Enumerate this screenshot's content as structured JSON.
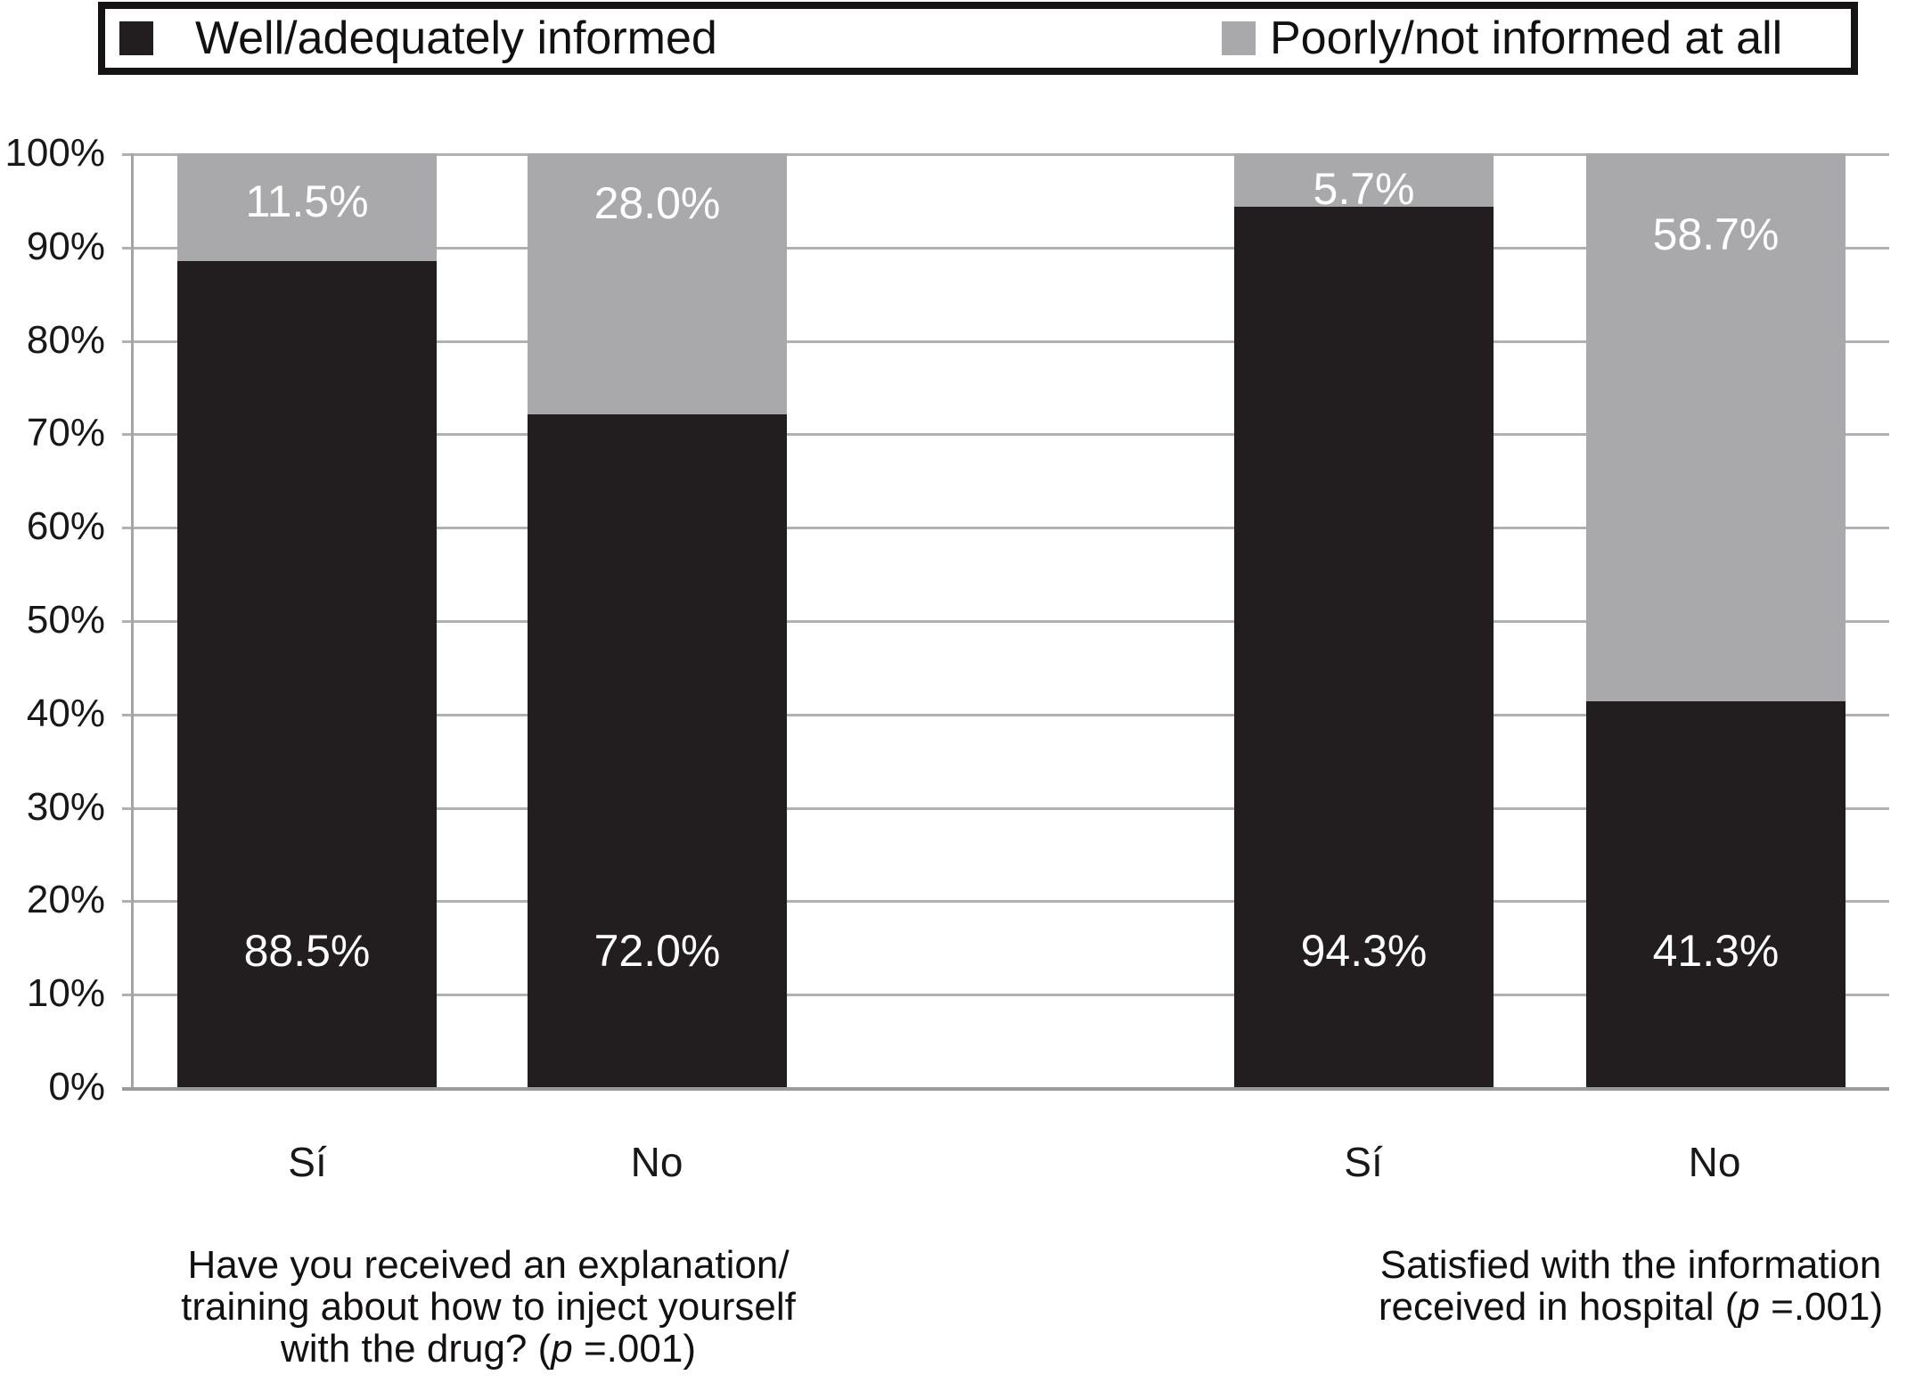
{
  "legend": {
    "items": [
      {
        "label": "Well/adequately informed",
        "color": "#221e1f"
      },
      {
        "label": "Poorly/not informed at all",
        "color": "#a9a9ab"
      }
    ]
  },
  "y_axis": {
    "ticks": [
      "100%",
      "90%",
      "80%",
      "70%",
      "60%",
      "50%",
      "40%",
      "30%",
      "20%",
      "10%",
      "0%"
    ]
  },
  "x_axis": {
    "categories": [
      "Sí",
      "No",
      "Sí",
      "No"
    ]
  },
  "labels": {
    "light": [
      "11.5%",
      "28.0%",
      "5.7%",
      "58.7%"
    ],
    "dark": [
      "88.5%",
      "72.0%",
      "94.3%",
      "41.3%"
    ]
  },
  "captions": {
    "left": {
      "line1": "Have you received an explanation/",
      "line2": "training about how to inject yourself",
      "line3_pre": "with the drug? (",
      "p": "p",
      "line3_post": " =.001)"
    },
    "right": {
      "line1": "Satisfied with the information",
      "line2_pre": "received in hospital (",
      "p": "p",
      "line2_post": " =.001)"
    }
  },
  "chart_data": {
    "type": "bar",
    "subtype": "stacked-100-percent",
    "categories": [
      "Sí",
      "No",
      "Sí",
      "No"
    ],
    "series": [
      {
        "name": "Well/adequately informed",
        "color": "#221e1f",
        "values": [
          88.5,
          72.0,
          94.3,
          41.3
        ]
      },
      {
        "name": "Poorly/not informed at all",
        "color": "#a9a9ab",
        "values": [
          11.5,
          28.0,
          5.7,
          58.7
        ]
      }
    ],
    "group_labels": [
      "Have you received an explanation/ training about how to inject yourself with the drug? (p =.001)",
      "Satisfied with the information received in hospital (p =.001)"
    ],
    "title": "",
    "xlabel": "",
    "ylabel": "",
    "ylim": [
      0,
      100
    ],
    "y_tick_step": 10,
    "y_tick_format": "percent",
    "grid": true,
    "legend_position": "top",
    "value_labels_shown": true
  }
}
